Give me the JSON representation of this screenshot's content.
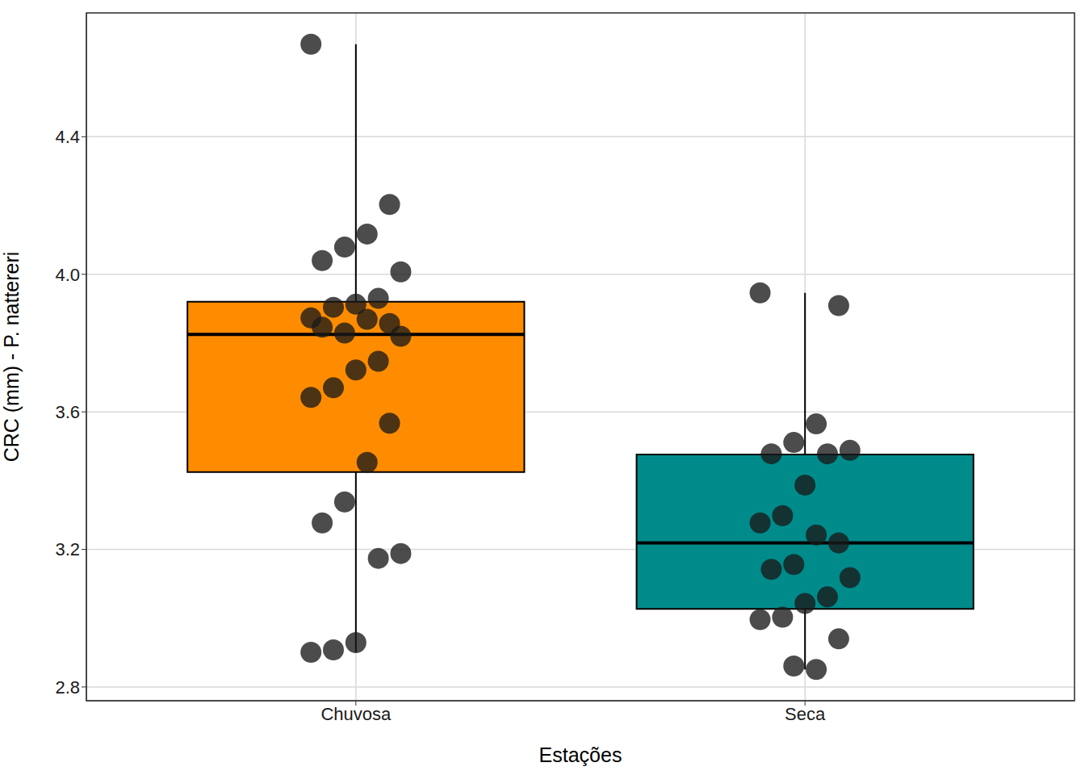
{
  "chart_data": {
    "type": "boxplot",
    "x_label": "Estações",
    "y_label": "CRC (mm) - P. nattereri",
    "categories": [
      "Chuvosa",
      "Seca"
    ],
    "colors": [
      "#ff8c00",
      "#008b8b"
    ],
    "marker": "circle",
    "boxes": [
      {
        "whisker_low": 2.901,
        "q1": 3.425,
        "median": 3.825,
        "q3": 3.92,
        "whisker_high": 4.669
      },
      {
        "whisker_low": 2.851,
        "q1": 3.027,
        "median": 3.219,
        "q3": 3.476,
        "whisker_high": 3.946
      }
    ],
    "points": [
      [
        4.669,
        4.203,
        4.117,
        4.079,
        4.04,
        4.007,
        3.93,
        3.913,
        3.904,
        3.873,
        3.857,
        3.869,
        3.829,
        3.846,
        3.82,
        3.747,
        3.722,
        3.67,
        3.642,
        3.567,
        3.453,
        3.338,
        3.277,
        3.188,
        3.174,
        2.929,
        2.908,
        2.901
      ],
      [
        3.946,
        3.909,
        3.565,
        3.511,
        3.478,
        3.488,
        3.478,
        3.387,
        3.298,
        3.277,
        3.219,
        3.242,
        3.156,
        3.142,
        3.118,
        3.062,
        3.043,
        3.003,
        2.996,
        2.94,
        2.851,
        2.861
      ]
    ],
    "ylim": [
      2.76,
      4.76
    ],
    "yticks": [
      2.8,
      3.2,
      3.6,
      {
        "value": 4,
        "label": "4.0"
      },
      4.4
    ],
    "grid": true
  }
}
